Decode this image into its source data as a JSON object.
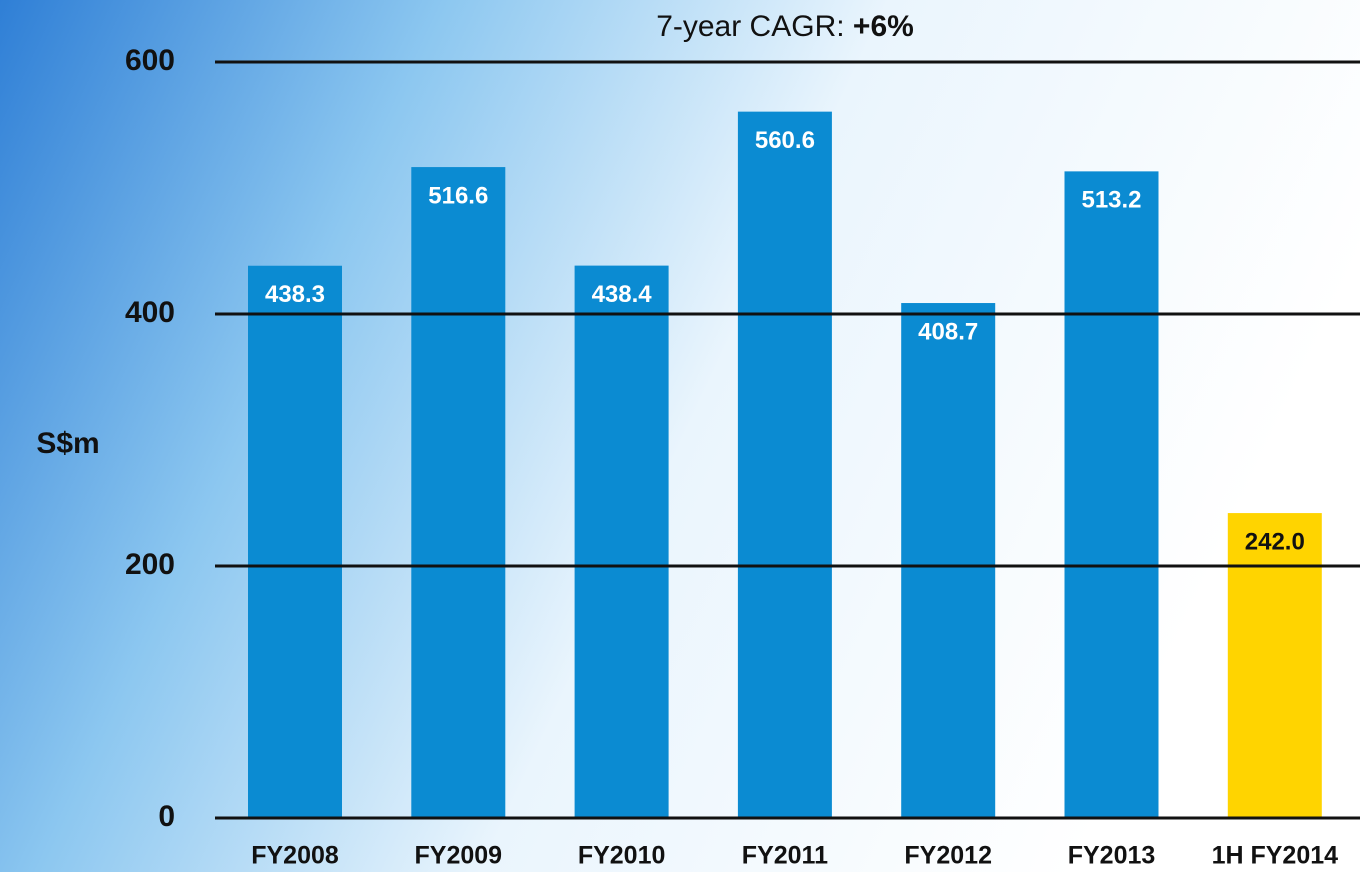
{
  "chart_data": {
    "type": "bar",
    "title": "7-year CAGR:",
    "title_emphasis": "+6%",
    "y_label": "S$m",
    "categories": [
      "FY2008",
      "FY2009",
      "FY2010",
      "FY2011",
      "FY2012",
      "FY2013",
      "1H FY2014"
    ],
    "values": [
      438.3,
      516.6,
      438.4,
      560.6,
      408.7,
      513.2,
      242.0
    ],
    "value_labels": [
      "438.3",
      "516.6",
      "438.4",
      "560.6",
      "408.7",
      "513.2",
      "242.0"
    ],
    "colors": [
      "#0b8bd2",
      "#0b8bd2",
      "#0b8bd2",
      "#0b8bd2",
      "#0b8bd2",
      "#0b8bd2",
      "#ffd400"
    ],
    "value_label_colors": [
      "#ffffff",
      "#ffffff",
      "#ffffff",
      "#ffffff",
      "#ffffff",
      "#ffffff",
      "#111111"
    ],
    "ylim": [
      0,
      600
    ],
    "yticks": [
      0,
      200,
      400,
      600
    ],
    "grid": true
  }
}
